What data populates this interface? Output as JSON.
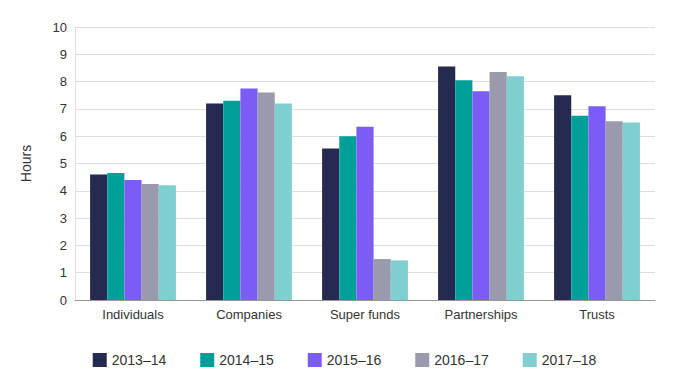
{
  "chart_data": {
    "type": "bar",
    "y_label": "Hours",
    "categories": [
      "Individuals",
      "Companies",
      "Super funds",
      "Partnerships",
      "Trusts"
    ],
    "series": [
      {
        "name": "2013–14",
        "color": "#252b50",
        "values": [
          4.6,
          7.2,
          5.55,
          8.55,
          7.5
        ]
      },
      {
        "name": "2014–15",
        "color": "#00a09a",
        "values": [
          4.65,
          7.3,
          6.0,
          8.05,
          6.75
        ]
      },
      {
        "name": "2015–16",
        "color": "#7b5cf5",
        "values": [
          4.4,
          7.75,
          6.35,
          7.65,
          7.1
        ]
      },
      {
        "name": "2016–17",
        "color": "#9a9aad",
        "values": [
          4.25,
          7.6,
          1.5,
          8.35,
          6.55
        ]
      },
      {
        "name": "2017–18",
        "color": "#7fcfd0",
        "values": [
          4.2,
          7.2,
          1.45,
          8.2,
          6.5
        ]
      }
    ],
    "ylim": [
      0,
      10
    ],
    "yticks": [
      0,
      1,
      2,
      3,
      4,
      5,
      6,
      7,
      8,
      9,
      10
    ],
    "grid": true,
    "legend": "bottom"
  }
}
